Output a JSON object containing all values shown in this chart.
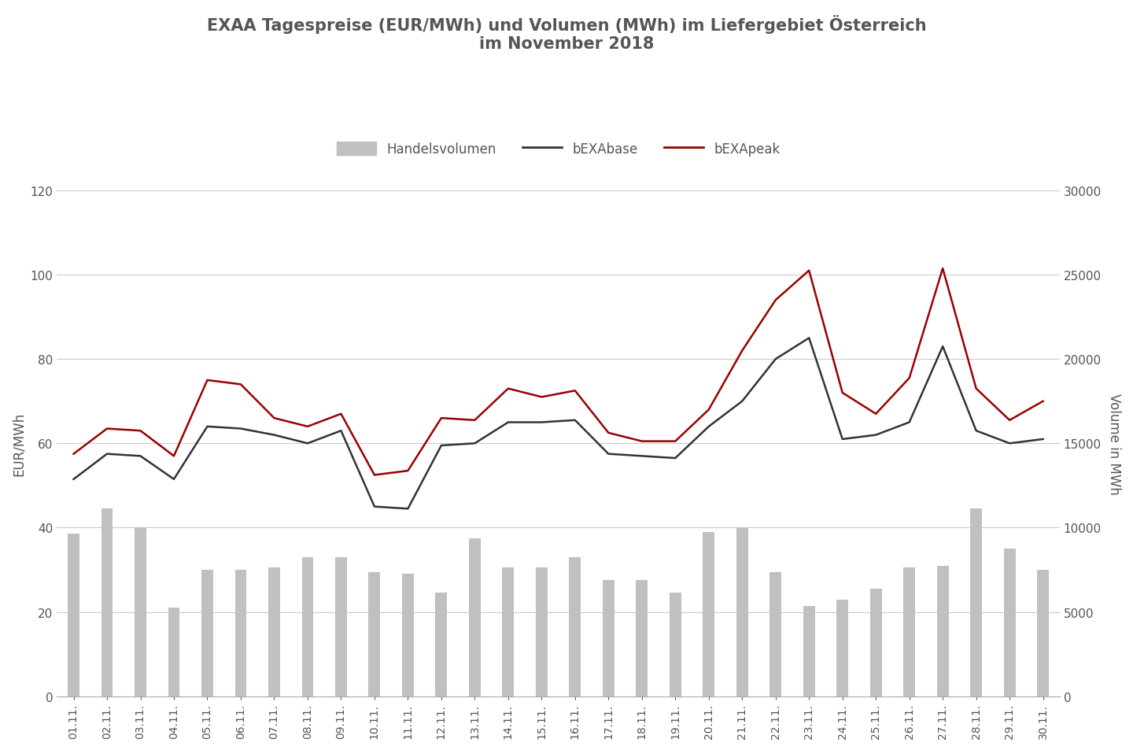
{
  "title": "EXAA Tagespreise (EUR/MWh) und Volumen (MWh) im Liefergebiet Österreich\nim November 2018",
  "title_fontsize": 15,
  "title_color": "#555555",
  "ylabel_left": "EUR/MWh",
  "ylabel_right": "Volume in MWh",
  "days": [
    "01.11.",
    "02.11.",
    "03.11.",
    "04.11.",
    "05.11.",
    "06.11.",
    "07.11.",
    "08.11.",
    "09.11.",
    "10.11.",
    "11.11.",
    "12.11.",
    "13.11.",
    "14.11.",
    "15.11.",
    "16.11.",
    "17.11.",
    "18.11.",
    "19.11.",
    "20.11.",
    "21.11.",
    "22.11.",
    "23.11.",
    "24.11.",
    "25.11.",
    "26.11.",
    "27.11.",
    "28.11.",
    "29.11.",
    "30.11."
  ],
  "bEXAbase": [
    51.5,
    57.5,
    57.0,
    51.5,
    64.0,
    63.5,
    62.0,
    60.0,
    63.0,
    45.0,
    44.5,
    59.5,
    60.0,
    65.0,
    65.0,
    65.5,
    57.5,
    57.0,
    56.5,
    64.0,
    70.0,
    80.0,
    85.0,
    61.0,
    62.0,
    65.0,
    83.0,
    63.0,
    60.0,
    61.0
  ],
  "bEXApeak": [
    57.5,
    63.5,
    63.0,
    57.0,
    75.0,
    74.0,
    66.0,
    64.0,
    67.0,
    52.5,
    53.5,
    66.0,
    65.5,
    73.0,
    71.0,
    72.5,
    62.5,
    60.5,
    60.5,
    68.0,
    82.0,
    94.0,
    101.0,
    72.0,
    67.0,
    75.5,
    101.5,
    73.0,
    65.5,
    70.0
  ],
  "volume_bars": [
    38.5,
    44.5,
    40.0,
    21.0,
    30.0,
    30.0,
    30.5,
    33.0,
    33.0,
    29.5,
    29.0,
    24.5,
    37.5,
    30.5,
    30.5,
    33.0,
    27.5,
    27.5,
    24.5,
    39.0,
    40.0,
    29.5,
    21.5,
    23.0,
    25.5,
    30.5,
    31.0,
    44.5,
    35.0,
    30.0
  ],
  "bar_color": "#c0c0c0",
  "base_color": "#333333",
  "peak_color": "#990000",
  "ylim_left": [
    0,
    120
  ],
  "ylim_right": [
    0,
    30000
  ],
  "yticks_left": [
    0,
    20,
    40,
    60,
    80,
    100,
    120
  ],
  "yticks_right": [
    0,
    5000,
    10000,
    15000,
    20000,
    25000,
    30000
  ],
  "background_color": "#ffffff",
  "grid_color": "#cccccc"
}
